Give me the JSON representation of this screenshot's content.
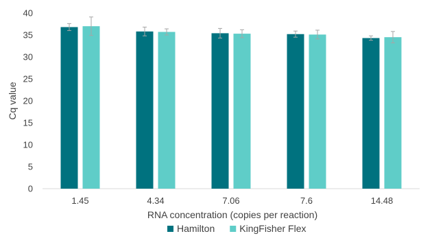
{
  "chart_data": {
    "type": "bar",
    "xlabel": "RNA concentration (copies per reaction)",
    "ylabel": "Cq value",
    "categories": [
      "1.45",
      "4.34",
      "7.06",
      "7.6",
      "14.48"
    ],
    "series": [
      {
        "name": "Hamilton",
        "values": [
          36.8,
          35.8,
          35.4,
          35.2,
          34.3
        ],
        "errors": [
          0.8,
          1.0,
          1.1,
          0.7,
          0.5
        ],
        "color": "#00727f"
      },
      {
        "name": "KingFisher Flex",
        "values": [
          37.0,
          35.7,
          35.3,
          35.1,
          34.5
        ],
        "errors": [
          2.1,
          0.7,
          0.9,
          1.0,
          1.3
        ],
        "color": "#5fcdc8"
      }
    ],
    "ylim": [
      0,
      40
    ],
    "yticks": [
      0,
      5,
      10,
      15,
      20,
      25,
      30,
      35,
      40
    ],
    "grid": false,
    "legend": "bottom"
  }
}
